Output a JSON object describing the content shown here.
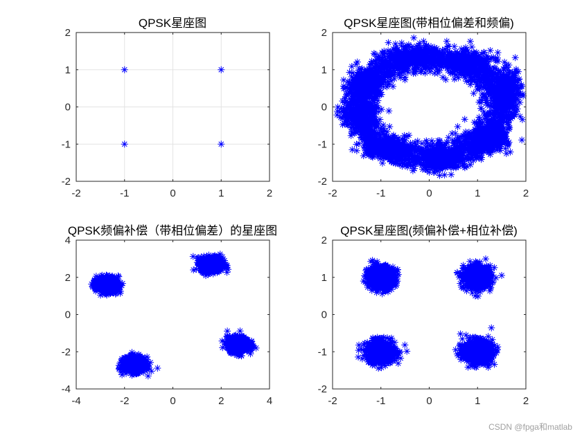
{
  "figure": {
    "watermark": "CSDN @fpga和matlab",
    "marker_color": "#0000ff",
    "marker": "asterisk"
  },
  "chart_data": [
    {
      "type": "scatter",
      "title": "QPSK星座图",
      "xlim": [
        -2,
        2
      ],
      "ylim": [
        -2,
        2
      ],
      "xticks": [
        -2,
        -1,
        0,
        1,
        2
      ],
      "yticks": [
        -2,
        -1,
        0,
        1,
        2
      ],
      "xtick_labels": [
        "-2",
        "-1",
        "0",
        "1",
        "2"
      ],
      "ytick_labels": [
        "-2",
        "-1",
        "0",
        "1",
        "2"
      ],
      "grid": true,
      "points": [
        [
          -1,
          1
        ],
        [
          1,
          1
        ],
        [
          -1,
          -1
        ],
        [
          1,
          -1
        ]
      ]
    },
    {
      "type": "scatter",
      "title": "QPSK星座图(带相位偏差和频偏)",
      "xlim": [
        -2,
        2
      ],
      "ylim": [
        -2,
        2
      ],
      "xticks": [
        -2,
        -1,
        0,
        1,
        2
      ],
      "yticks": [
        -2,
        -1,
        0,
        1,
        2
      ],
      "xtick_labels": [
        "-2",
        "-1",
        "0",
        "1",
        "2"
      ],
      "ytick_labels": [
        "-2",
        "-1",
        "0",
        "1",
        "2"
      ],
      "grid": false,
      "distribution": "ring",
      "ring_radius": 1.41,
      "ring_spread": 0.3,
      "clusters": [
        {
          "cx": -1.3,
          "cy": 0.6,
          "rx": 0.3,
          "ry": 0.4
        },
        {
          "cx": -0.4,
          "cy": 1.3,
          "rx": 0.6,
          "ry": 0.3
        },
        {
          "cx": 0.8,
          "cy": 1.2,
          "rx": 0.5,
          "ry": 0.3
        },
        {
          "cx": 1.6,
          "cy": 0.5,
          "rx": 0.3,
          "ry": 0.5
        },
        {
          "cx": 1.2,
          "cy": -0.9,
          "rx": 0.4,
          "ry": 0.3
        },
        {
          "cx": 0.3,
          "cy": -1.4,
          "rx": 0.5,
          "ry": 0.3
        },
        {
          "cx": -0.9,
          "cy": -1.1,
          "rx": 0.4,
          "ry": 0.3
        },
        {
          "cx": -1.4,
          "cy": -0.2,
          "rx": 0.3,
          "ry": 0.3
        }
      ]
    },
    {
      "type": "scatter",
      "title": "QPSK频偏补偿（带相位偏差）的星座图",
      "xlim": [
        -4,
        4
      ],
      "ylim": [
        -4,
        4
      ],
      "xticks": [
        -4,
        -2,
        0,
        2,
        4
      ],
      "yticks": [
        -4,
        -2,
        0,
        2,
        4
      ],
      "xtick_labels": [
        "-4",
        "-2",
        "0",
        "2",
        "4"
      ],
      "ytick_labels": [
        "-4",
        "-2",
        "0",
        "2",
        "4"
      ],
      "grid": false,
      "distribution": "clusters",
      "clusters": [
        {
          "cx": -2.7,
          "cy": 1.6,
          "rx": 0.45,
          "ry": 0.4
        },
        {
          "cx": 1.6,
          "cy": 2.7,
          "rx": 0.45,
          "ry": 0.4
        },
        {
          "cx": 2.7,
          "cy": -1.6,
          "rx": 0.45,
          "ry": 0.4
        },
        {
          "cx": -1.6,
          "cy": -2.7,
          "rx": 0.45,
          "ry": 0.4
        }
      ]
    },
    {
      "type": "scatter",
      "title": "QPSK星座图(频偏补偿+相位补偿)",
      "xlim": [
        -2,
        2
      ],
      "ylim": [
        -2,
        2
      ],
      "xticks": [
        -2,
        -1,
        0,
        1,
        2
      ],
      "yticks": [
        -2,
        -1,
        0,
        1,
        2
      ],
      "xtick_labels": [
        "-2",
        "-1",
        "0",
        "1",
        "2"
      ],
      "ytick_labels": [
        "-2",
        "-1",
        "0",
        "1",
        "2"
      ],
      "grid": false,
      "distribution": "clusters",
      "clusters": [
        {
          "cx": -1,
          "cy": 1,
          "rx": 0.28,
          "ry": 0.3
        },
        {
          "cx": 1,
          "cy": 1,
          "rx": 0.28,
          "ry": 0.3
        },
        {
          "cx": -1,
          "cy": -1,
          "rx": 0.3,
          "ry": 0.3
        },
        {
          "cx": 1,
          "cy": -1,
          "rx": 0.3,
          "ry": 0.3
        }
      ]
    }
  ]
}
